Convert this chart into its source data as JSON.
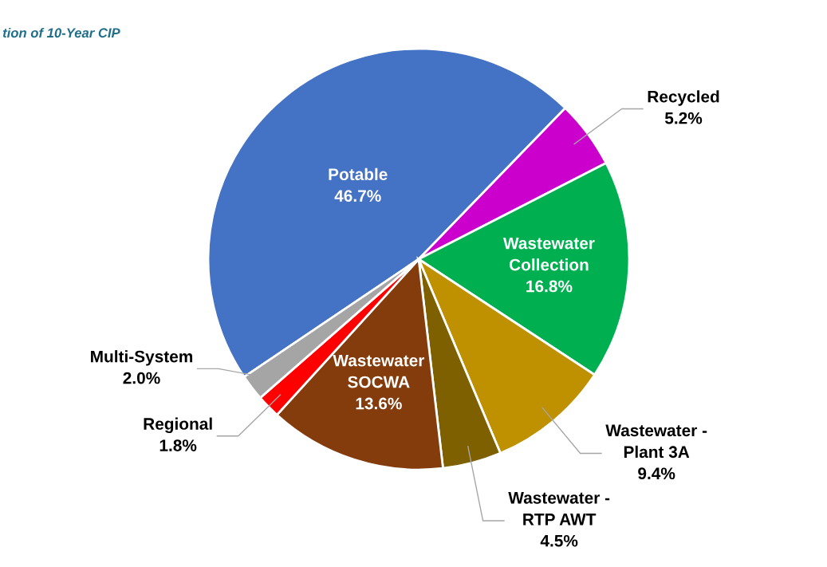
{
  "chart_data": {
    "type": "pie",
    "title": "tion of 10-Year CIP",
    "categories": [
      "Potable",
      "Recycled",
      "Wastewater\nCollection",
      "Wastewater -\nPlant 3A",
      "Wastewater -\nRTP AWT",
      "Wastewater\nSOCWA",
      "Regional",
      "Multi-System"
    ],
    "values": [
      46.7,
      5.2,
      16.8,
      9.4,
      4.5,
      13.6,
      1.8,
      2.0
    ],
    "value_labels": [
      "46.7%",
      "5.2%",
      "16.8%",
      "9.4%",
      "4.5%",
      "13.6%",
      "1.8%",
      "2.0%"
    ],
    "colors": [
      "#4472c4",
      "#cc00cc",
      "#00b050",
      "#bf9000",
      "#7f6000",
      "#843c0c",
      "#ff0000",
      "#a5a5a5"
    ],
    "legend": false
  }
}
